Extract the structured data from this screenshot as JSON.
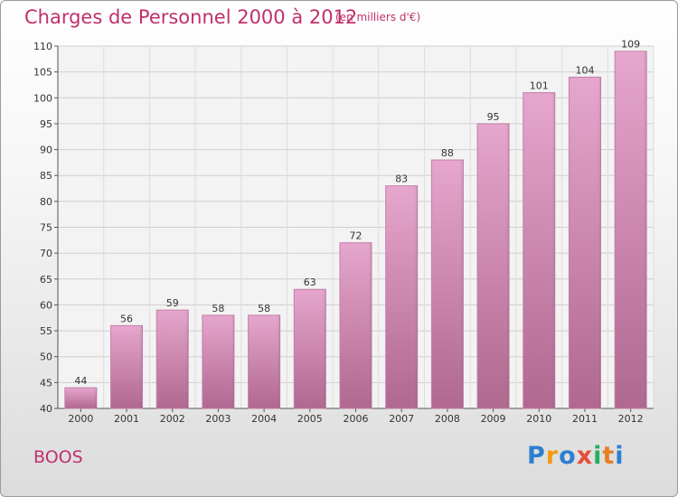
{
  "chart_data": {
    "type": "bar",
    "title": "Charges de Personnel 2000 à 2012",
    "subtitle": "(en milliers d'€)",
    "categories": [
      "2000",
      "2001",
      "2002",
      "2003",
      "2004",
      "2005",
      "2006",
      "2007",
      "2008",
      "2009",
      "2010",
      "2011",
      "2012"
    ],
    "values": [
      44,
      56,
      59,
      58,
      58,
      63,
      72,
      83,
      88,
      95,
      101,
      104,
      109
    ],
    "ylim": [
      40,
      110
    ],
    "yticks": [
      40,
      45,
      50,
      55,
      60,
      65,
      70,
      75,
      80,
      85,
      90,
      95,
      100,
      105,
      110
    ],
    "grid": true,
    "bar_color": "#d98cb8"
  },
  "location": "BOOS",
  "logo": {
    "letters": [
      "P",
      "r",
      "o",
      "x",
      "i",
      "t",
      "i"
    ],
    "colors": [
      "#2e7fd0",
      "#f39c12",
      "#2e7fd0",
      "#e74c3c",
      "#27ae60",
      "#e67e22",
      "#2e7fd0"
    ]
  }
}
